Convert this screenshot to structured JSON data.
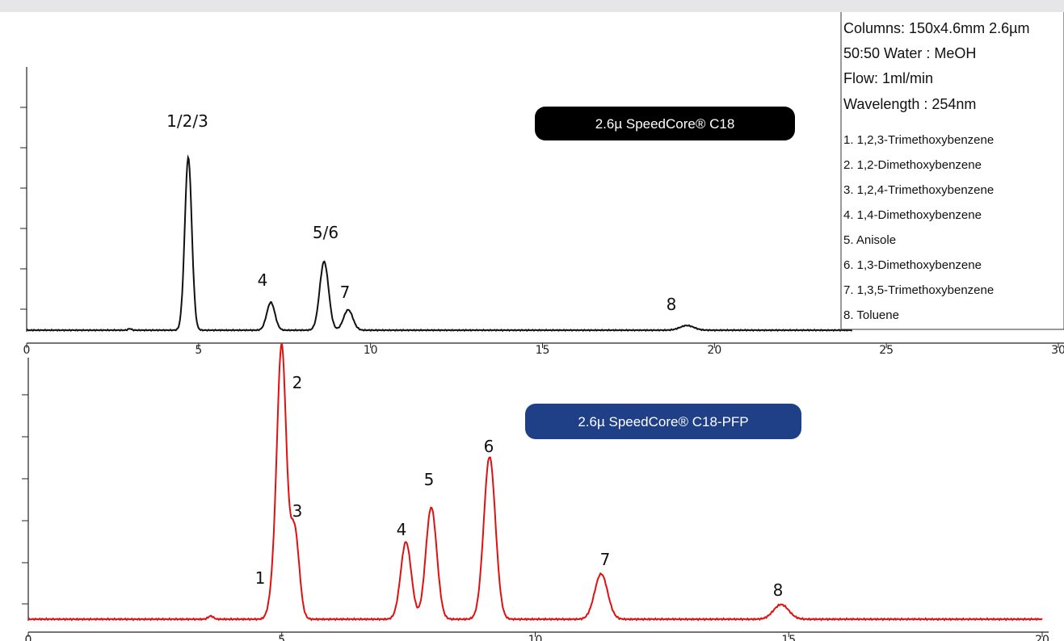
{
  "chart_data": [
    {
      "type": "line",
      "title": "2.6µ SpeedCore® C18",
      "badge_color": "#000000",
      "trace_color": "#111111",
      "xlabel": "",
      "ylabel": "",
      "xlim": [
        0,
        30
      ],
      "x_ticks": [
        "0",
        "5",
        "10",
        "15",
        "20",
        "25",
        "30"
      ],
      "y_tick_count": 7,
      "grid": false,
      "peaks": [
        {
          "label": "1/2/3",
          "rt": 4.7,
          "height": 0.93
        },
        {
          "label": "4",
          "rt": 7.1,
          "height": 0.15
        },
        {
          "label": "5/6",
          "rt": 8.65,
          "height": 0.37
        },
        {
          "label": "7",
          "rt": 9.35,
          "height": 0.11
        },
        {
          "label": "8",
          "rt": 19.2,
          "height": 0.025
        }
      ]
    },
    {
      "type": "line",
      "title": "2.6µ SpeedCore® C18-PFP",
      "badge_color": "#1f3f86",
      "trace_color": "#e01010",
      "xlabel": "",
      "ylabel": "",
      "xlim": [
        0,
        20
      ],
      "x_ticks": [
        "0",
        "5",
        "10",
        "15",
        "20"
      ],
      "y_tick_count": 6,
      "grid": false,
      "peaks": [
        {
          "label": "1",
          "rt": 4.85,
          "height": 0.11
        },
        {
          "label": "2",
          "rt": 5.0,
          "height": 1.0
        },
        {
          "label": "3",
          "rt": 5.25,
          "height": 0.34
        },
        {
          "label": "4",
          "rt": 7.45,
          "height": 0.29
        },
        {
          "label": "5",
          "rt": 7.95,
          "height": 0.42
        },
        {
          "label": "6",
          "rt": 9.1,
          "height": 0.61
        },
        {
          "label": "7",
          "rt": 11.3,
          "height": 0.17
        },
        {
          "label": "8",
          "rt": 14.85,
          "height": 0.055
        }
      ]
    }
  ],
  "conditions": {
    "columns": "Columns:   150x4.6mm 2.6µm",
    "mobile_phase": "50:50 Water : MeOH",
    "flow": "Flow: 1ml/min",
    "wavelength": "Wavelength : 254nm",
    "compounds": [
      "1. 1,2,3-Trimethoxybenzene",
      "2. 1,2-Dimethoxybenzene",
      "3. 1,2,4-Trimethoxybenzene",
      "4. 1,4-Dimethoxybenzene",
      "5. Anisole",
      "6. 1,3-Dimethoxybenzene",
      "7. 1,3,5-Trimethoxybenzene",
      "8. Toluene"
    ]
  }
}
